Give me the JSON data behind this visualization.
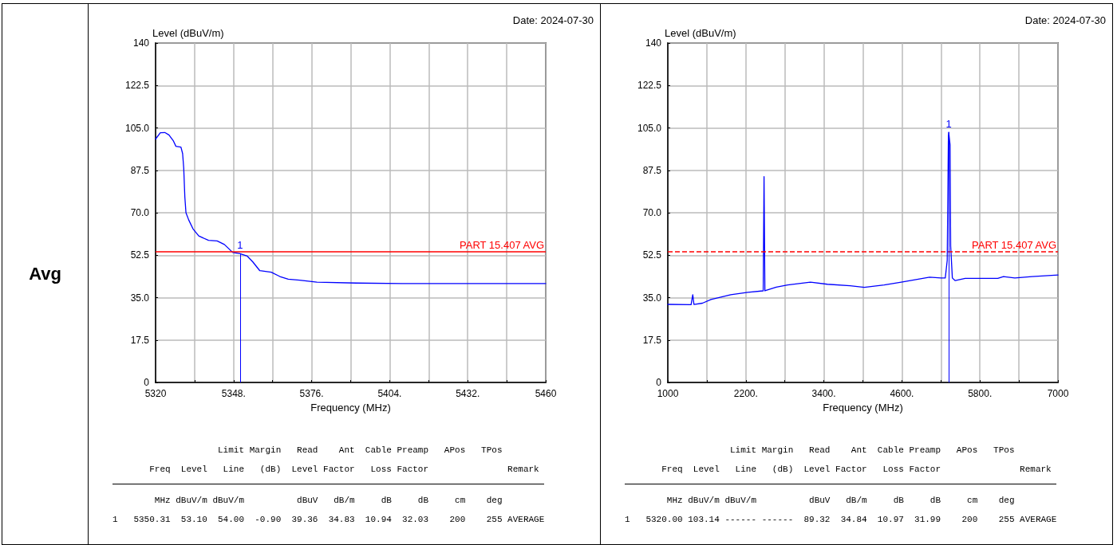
{
  "chart_data": [
    {
      "type": "line",
      "subtitle": "Avg",
      "xlabel": "Frequency (MHz)",
      "ylabel": "Level (dBuV/m)",
      "x": [
        5320,
        5321.7,
        5323.3,
        5324.8,
        5326.3,
        5327.3,
        5329.1,
        5329.7,
        5330.1,
        5330.5,
        5330.9,
        5331.9,
        5333.4,
        5335.5,
        5339,
        5342.1,
        5344.7,
        5347.7,
        5350.31,
        5352.9,
        5354.9,
        5357.4,
        5361.5,
        5364.6,
        5367.6,
        5371.7,
        5377.9,
        5392.1,
        5408.5,
        5460
      ],
      "series": [
        {
          "color": "#0000ff",
          "values": [
            100.4,
            103,
            103.1,
            102.1,
            99.8,
            97.4,
            97.1,
            94.4,
            88.4,
            76.5,
            70,
            67,
            63.4,
            60.4,
            58.6,
            58.4,
            56.9,
            53.6,
            53.1,
            52.1,
            49.7,
            46.1,
            45.5,
            43.7,
            42.6,
            42.2,
            41.4,
            41,
            40.8,
            40.8
          ]
        }
      ],
      "xlim": [
        5320,
        5460
      ],
      "xticks": [
        5320,
        {
          "value": 5334,
          "label": null
        },
        {
          "value": 5348,
          "label": "5348."
        },
        {
          "value": 5362,
          "label": null
        },
        {
          "value": 5376,
          "label": "5376."
        },
        {
          "value": 5390,
          "label": null
        },
        {
          "value": 5404,
          "label": "5404."
        },
        {
          "value": 5418,
          "label": null
        },
        {
          "value": 5432,
          "label": "5432."
        },
        {
          "value": 5446,
          "label": null
        },
        5460
      ],
      "ylim": [
        0,
        140
      ],
      "yticks": [
        0,
        17.5,
        {
          "value": 35,
          "label": "35.0"
        },
        52.5,
        {
          "value": 70,
          "label": "70.0"
        },
        87.5,
        {
          "value": 105,
          "label": "105.0"
        },
        122.5,
        140
      ],
      "grid": true,
      "marker": "none",
      "ref_lines": [
        {
          "axis": "y",
          "value": 54,
          "label": "PART 15.407 AVG",
          "color": "#ff0000",
          "line_style": "solid"
        }
      ],
      "annotations": [
        "Date: 2024-07-30",
        {
          "text": "1",
          "x": 5350.31,
          "y": 53.1
        },
        "                    Limit Margin   Read    Ant  Cable Preamp   APos   TPos",
        "       Freq  Level   Line   (dB)  Level Factor   Loss Factor               Remark",
        "        MHz dBuV/m dBuV/m          dBuV   dB/m     dB     dB     cm    deg",
        "1   5350.31  53.10  54.00  -0.90  39.36  34.83  10.94  32.03    200    255 AVERAGE"
      ]
    },
    {
      "type": "line",
      "xlabel": "Frequency (MHz)",
      "ylabel": "Level (dBuV/m)",
      "x": [
        1000,
        1358,
        1384,
        1402,
        1533,
        1664,
        1969,
        2231,
        2467,
        2480,
        2493,
        2668,
        2843,
        3192,
        3454,
        3804,
        4022,
        4328,
        4590,
        5026,
        5201,
        5267,
        5297,
        5315,
        5320,
        5341,
        5350,
        5376,
        5420,
        5573,
        6075,
        6162,
        6337,
        6599,
        7000
      ],
      "series": [
        {
          "color": "#0000ff",
          "values": [
            32.2,
            32.1,
            36.2,
            32.2,
            32.7,
            34.2,
            36.2,
            37.2,
            37.8,
            84.9,
            37.8,
            39.3,
            40.2,
            41.4,
            40.5,
            39.9,
            39.2,
            40.2,
            41.4,
            43.4,
            43.1,
            43.1,
            50.3,
            101.5,
            103.14,
            98,
            56.3,
            43.1,
            42,
            42.9,
            42.9,
            43.7,
            43.1,
            43.7,
            44.3
          ]
        }
      ],
      "xlim": [
        1000,
        7000
      ],
      "xticks": [
        1000,
        {
          "value": 1600,
          "label": null
        },
        {
          "value": 2200,
          "label": "2200."
        },
        {
          "value": 2800,
          "label": null
        },
        {
          "value": 3400,
          "label": "3400."
        },
        {
          "value": 4000,
          "label": null
        },
        {
          "value": 4600,
          "label": "4600."
        },
        {
          "value": 5200,
          "label": null
        },
        {
          "value": 5800,
          "label": "5800."
        },
        {
          "value": 6400,
          "label": null
        },
        7000
      ],
      "ylim": [
        0,
        140
      ],
      "yticks": [
        0,
        17.5,
        {
          "value": 35,
          "label": "35.0"
        },
        52.5,
        {
          "value": 70,
          "label": "70.0"
        },
        87.5,
        {
          "value": 105,
          "label": "105.0"
        },
        122.5,
        140
      ],
      "grid": true,
      "marker": "none",
      "ref_lines": [
        {
          "axis": "y",
          "value": 54,
          "label": "PART 15.407 AVG",
          "color": "#ff0000",
          "line_style": "dashed"
        }
      ],
      "annotations": [
        "Date: 2024-07-30",
        {
          "text": "1",
          "x": 5320,
          "y": 103.14
        },
        "                    Limit Margin   Read    Ant  Cable Preamp   APos   TPos",
        "       Freq  Level   Line   (dB)  Level Factor   Loss Factor               Remark",
        "        MHz dBuV/m dBuV/m          dBuV   dB/m     dB     dB     cm    deg",
        "1   5320.00 103.14 ------ ------  89.32  34.84  10.97  31.99    200    255 AVERAGE"
      ]
    }
  ]
}
